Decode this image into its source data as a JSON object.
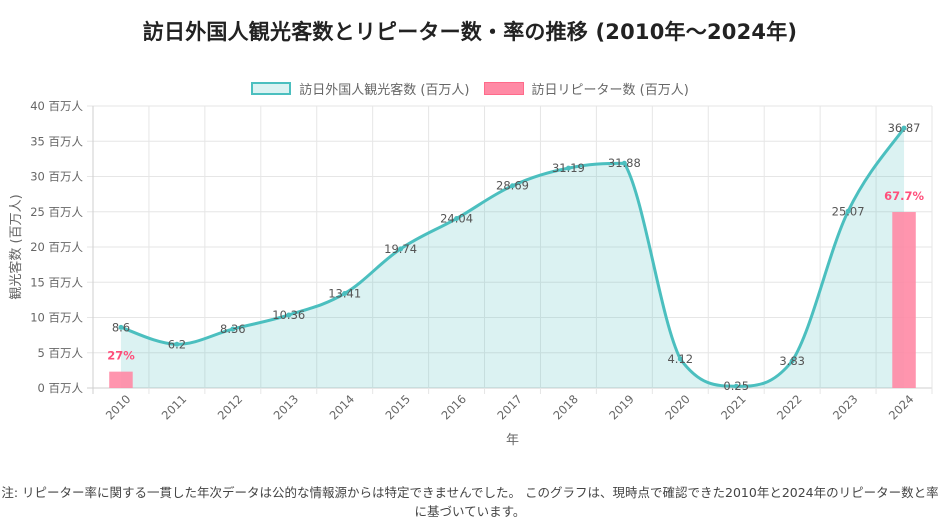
{
  "title": "訪日外国人観光客数とリピーター数・率の推移 (2010年～2024年)",
  "legend": {
    "visitors": "訪日外国人観光客数 (百万人)",
    "repeaters": "訪日リピーター数 (百万人)"
  },
  "note": "注: リピーター率に関する一貫した年次データは公的な情報源からは特定できませんでした。 このグラフは、現時点で確認できた2010年と2024年のリピーター数と率に基づいています。",
  "colors": {
    "visitors_line": "#4bbfbf",
    "visitors_fill": "rgba(75,192,192,0.2)",
    "repeaters_bar": "#ff8aa5",
    "rate_label": "#ff4f7b"
  },
  "chart_data": {
    "type": "line",
    "xlabel": "年",
    "ylabel": "観光客数 (百万人)",
    "ylim": [
      0,
      40
    ],
    "yticks": [
      0,
      5,
      10,
      15,
      20,
      25,
      30,
      35,
      40
    ],
    "ytick_suffix": " 百万人",
    "grid": true,
    "legend_position": "top",
    "categories": [
      "2010",
      "2011",
      "2012",
      "2013",
      "2014",
      "2015",
      "2016",
      "2017",
      "2018",
      "2019",
      "2020",
      "2021",
      "2022",
      "2023",
      "2024"
    ],
    "series": [
      {
        "name": "訪日外国人観光客数 (百万人)",
        "kind": "area-line",
        "values": [
          8.6,
          6.2,
          8.36,
          10.36,
          13.41,
          19.74,
          24.04,
          28.69,
          31.19,
          31.88,
          4.12,
          0.25,
          3.83,
          25.07,
          36.87
        ],
        "labels": [
          "8.6",
          "6.2",
          "8.36",
          "10.36",
          "13.41",
          "19.74",
          "24.04",
          "28.69",
          "31.19",
          "31.88",
          "4.12",
          "0.25",
          "3.83",
          "25.07",
          "36.87"
        ]
      },
      {
        "name": "訪日リピーター数 (百万人)",
        "kind": "bar",
        "values": [
          2.32,
          null,
          null,
          null,
          null,
          null,
          null,
          null,
          null,
          null,
          null,
          null,
          null,
          null,
          24.96
        ],
        "rate_labels": [
          "27%",
          null,
          null,
          null,
          null,
          null,
          null,
          null,
          null,
          null,
          null,
          null,
          null,
          null,
          "67.7%"
        ]
      }
    ]
  }
}
